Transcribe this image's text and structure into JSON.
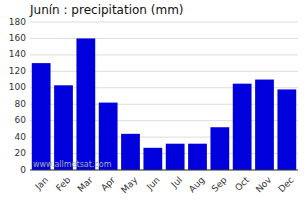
{
  "chart_data": {
    "type": "bar",
    "title": "Junín : precipitation (mm)",
    "categories": [
      "Jan",
      "Feb",
      "Mar",
      "Apr",
      "May",
      "Jun",
      "Jul",
      "Aug",
      "Sep",
      "Oct",
      "Nov",
      "Dec"
    ],
    "values": [
      130,
      103,
      160,
      82,
      44,
      27,
      32,
      32,
      52,
      105,
      110,
      98
    ],
    "color": "#0000dd",
    "ylim": [
      0,
      180
    ],
    "yticks": [
      0,
      20,
      40,
      60,
      80,
      100,
      120,
      140,
      160,
      180
    ],
    "grid": true,
    "annotations": [
      "www.allmetsat.com"
    ]
  }
}
